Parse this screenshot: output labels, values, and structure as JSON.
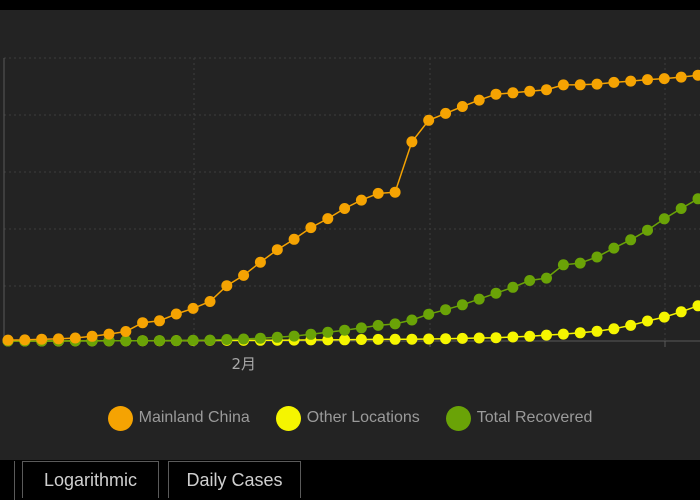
{
  "chart_data": {
    "type": "line",
    "x_tick_labels": [
      {
        "label": "2月",
        "day": 13
      }
    ],
    "x_range_days": [
      0,
      41
    ],
    "y_range": [
      0,
      85000
    ],
    "grid": true,
    "legend_position": "bottom-center",
    "series": [
      {
        "name": "Mainland China",
        "color": "#f5a302",
        "values": [
          278,
          326,
          547,
          639,
          916,
          1399,
          2062,
          2863,
          5494,
          6070,
          8124,
          9783,
          11871,
          16607,
          19693,
          23680,
          27409,
          30553,
          34075,
          36778,
          39790,
          42306,
          44327,
          44699,
          59832,
          66292,
          68347,
          70446,
          72364,
          74139,
          74546,
          74999,
          75472,
          76922,
          76938,
          77152,
          77660,
          78065,
          78498,
          78824,
          79251,
          79824
        ]
      },
      {
        "name": "Other Locations",
        "color": "#f5f500",
        "values": [
          4,
          6,
          8,
          14,
          25,
          40,
          57,
          64,
          87,
          105,
          118,
          153,
          173,
          183,
          188,
          212,
          227,
          265,
          317,
          343,
          361,
          457,
          476,
          523,
          538,
          595,
          685,
          780,
          896,
          999,
          1200,
          1402,
          1769,
          2069,
          2459,
          2918,
          3664,
          4691,
          6009,
          7169,
          8774,
          10566
        ]
      },
      {
        "name": "Total Recovered",
        "color": "#6aa307",
        "values": [
          0,
          0,
          0,
          30,
          36,
          39,
          49,
          58,
          101,
          120,
          135,
          214,
          275,
          463,
          614,
          843,
          1115,
          1476,
          2011,
          2616,
          3244,
          3946,
          4683,
          5150,
          6295,
          8058,
          9395,
          10865,
          12583,
          14352,
          16121,
          18177,
          18890,
          22886,
          23394,
          25227,
          27905,
          30384,
          33277,
          36711,
          39782,
          42716
        ]
      }
    ]
  },
  "legend": [
    {
      "label": "Mainland China",
      "color": "#f5a302"
    },
    {
      "label": "Other Locations",
      "color": "#f5f500"
    },
    {
      "label": "Total Recovered",
      "color": "#6aa307"
    }
  ],
  "tabs": {
    "logarithmic": "Logarithmic",
    "daily_cases": "Daily Cases"
  },
  "colors": {
    "panel_bg": "#232323",
    "grid": "#3c3c3c",
    "axis": "#5a5a5a",
    "tick_text": "#a8a8a8"
  }
}
